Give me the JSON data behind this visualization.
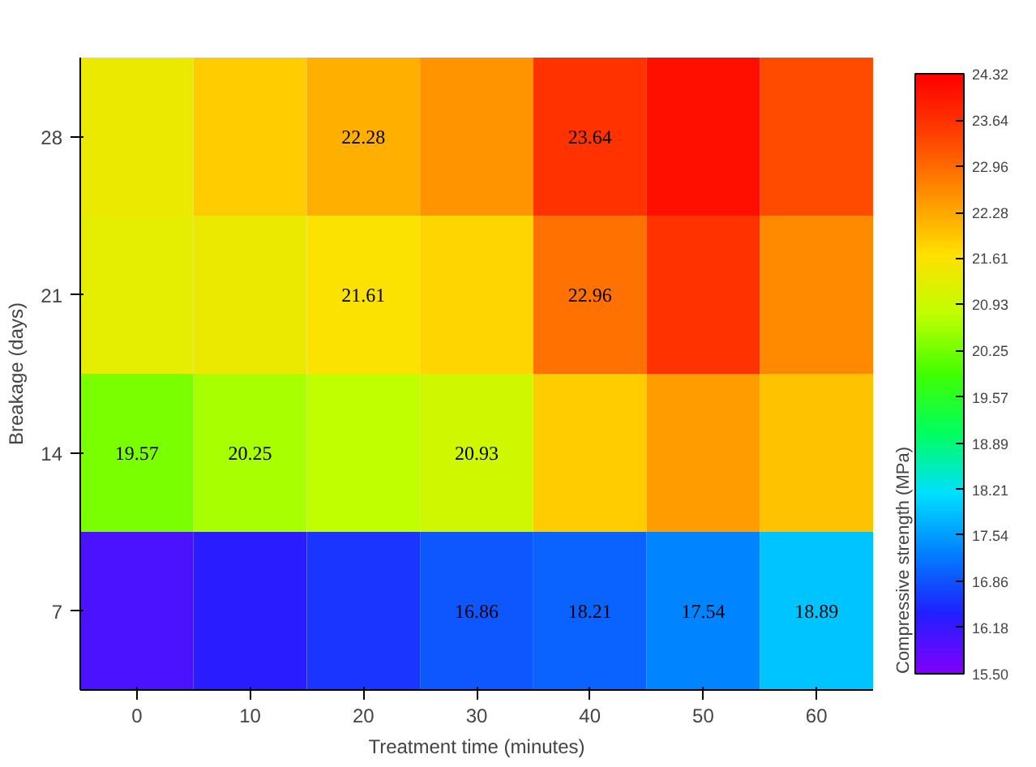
{
  "chart_data": {
    "type": "heatmap",
    "xlabel": "Treatment time (minutes)",
    "ylabel": "Breakage (days)",
    "clabel": "Compressive strength (MPa)",
    "categories": [
      "0",
      "10",
      "20",
      "30",
      "40",
      "50",
      "60"
    ],
    "y_categories": [
      "28",
      "21",
      "14",
      "7"
    ],
    "cells": [
      [
        21.4,
        21.9,
        22.2,
        22.5,
        23.6,
        24.1,
        23.3
      ],
      [
        21.3,
        21.4,
        21.6,
        21.8,
        22.9,
        23.6,
        22.6
      ],
      [
        20.3,
        20.6,
        20.8,
        21.0,
        21.9,
        22.4,
        22.0
      ],
      [
        16.0,
        16.3,
        16.6,
        16.9,
        17.0,
        17.3,
        17.9
      ]
    ],
    "clim": [
      15.5,
      24.32
    ],
    "cticks": [
      {
        "value": 15.5,
        "label": "15.50"
      },
      16.18,
      {
        "value": 16.86,
        "label": "16.86"
      },
      17.54,
      18.21,
      18.89,
      19.57,
      20.25,
      20.93,
      21.61,
      22.28,
      22.96,
      23.64,
      24.32
    ],
    "colors": [
      "#8000ff",
      "#2020ff",
      "#0080ff",
      "#00e0ff",
      "#00ff60",
      "#40ff00",
      "#c0ff00",
      "#ffe000",
      "#ff9000",
      "#ff4000",
      "#ff0000"
    ],
    "annotations": [
      "22.28",
      "21.61",
      "23.64",
      "22.96",
      "20.93",
      "19.57",
      "20.25",
      "18.89",
      "17.54",
      "16.86",
      "18.21"
    ]
  }
}
